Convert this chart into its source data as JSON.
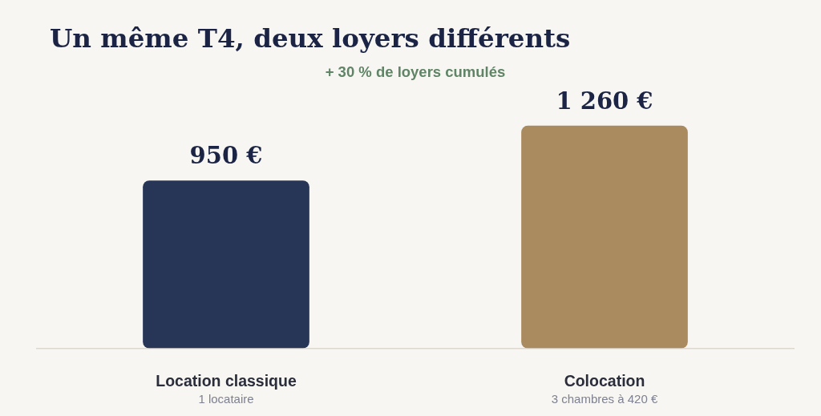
{
  "chart_data": {
    "type": "bar",
    "title": "Un même T4, deux loyers différents",
    "subtitle": "+ 30 % de loyers cumulés",
    "categories": [
      "Location classique",
      "Colocation"
    ],
    "values": [
      950,
      1260
    ],
    "colors": [
      "#273657",
      "#a98b5f"
    ],
    "value_labels": [
      "950 €",
      "1 260 €"
    ],
    "annotations": [
      "1 locataire",
      "3 chambres à 420 €"
    ],
    "tick_labels": "x",
    "legend": false,
    "grid": false
  }
}
